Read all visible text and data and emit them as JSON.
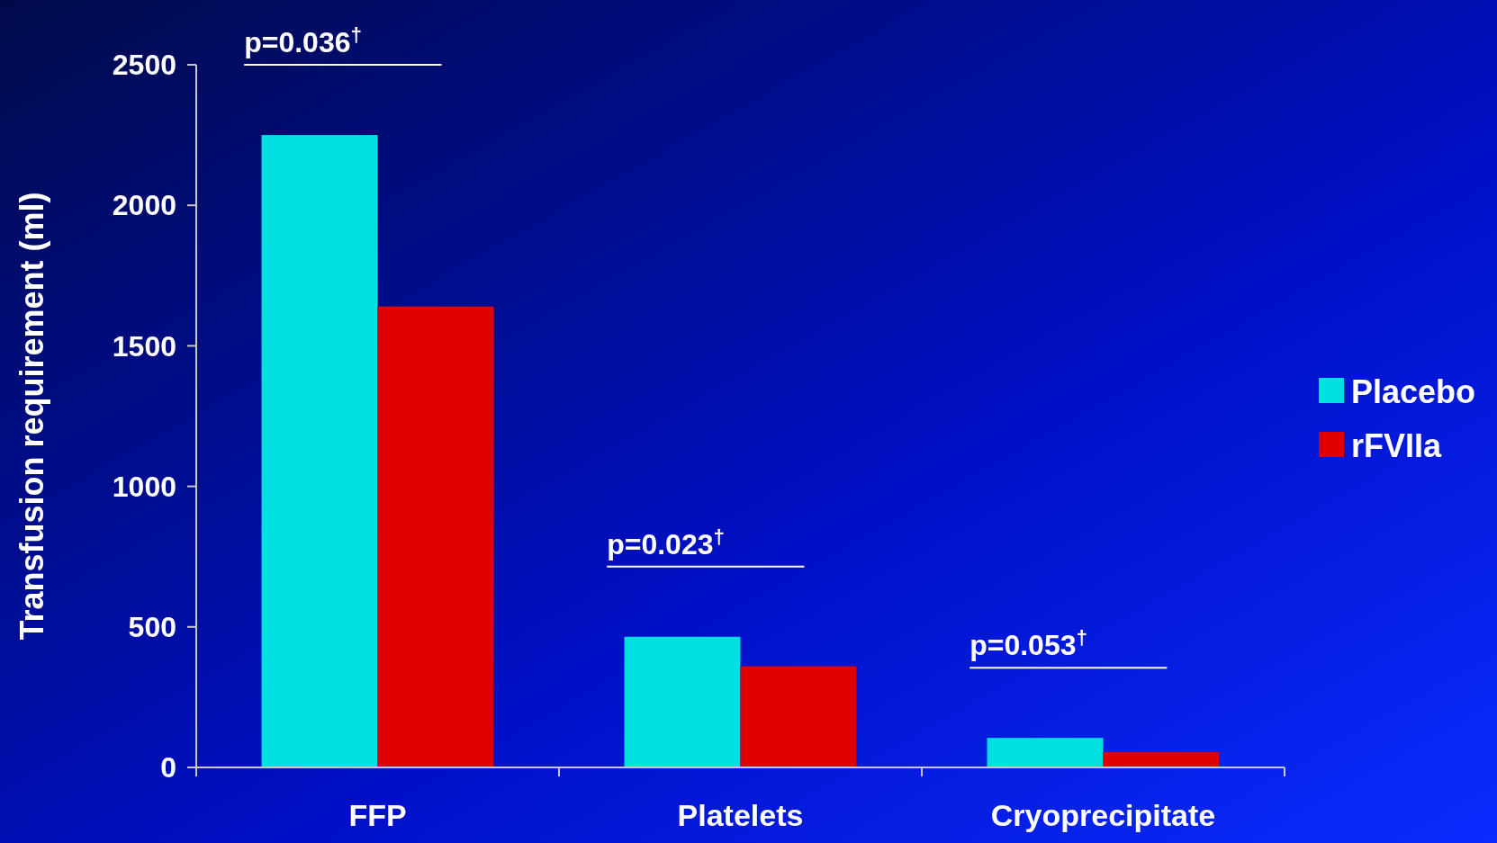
{
  "chart_data": {
    "type": "bar",
    "ylabel": "Transfusion requirement (ml)",
    "categories": [
      "FFP",
      "Platelets",
      "Cryoprecipitate"
    ],
    "series": [
      {
        "name": "Placebo",
        "color": "#00e0e0",
        "values": [
          2250,
          465,
          105
        ]
      },
      {
        "name": "rFVIIa",
        "color": "#e00000",
        "values": [
          1640,
          360,
          55
        ]
      }
    ],
    "ylim": [
      0,
      2500
    ],
    "yticks": [
      0,
      500,
      1000,
      1500,
      2000,
      2500
    ],
    "grid": false,
    "legend": "right",
    "annotations": [
      "p=0.036$^{†}$",
      "p=0.023$^{†}$",
      "p=0.053$^{†}$"
    ]
  }
}
